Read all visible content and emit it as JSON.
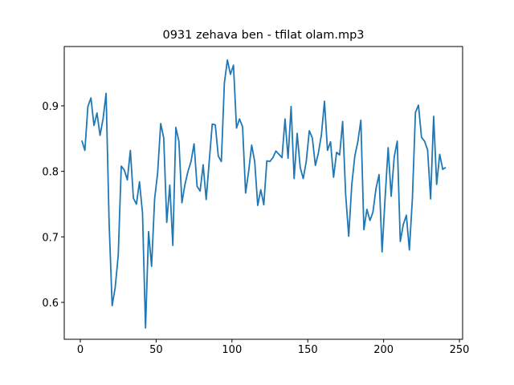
{
  "chart_data": {
    "type": "line",
    "title": "0931 zehava ben - tfilat olam.mp3",
    "x": [
      1,
      3,
      5,
      7,
      9,
      11,
      13,
      15,
      17,
      19,
      21,
      23,
      25,
      27,
      29,
      31,
      33,
      35,
      37,
      39,
      41,
      43,
      45,
      47,
      49,
      51,
      53,
      55,
      57,
      59,
      61,
      63,
      65,
      67,
      69,
      71,
      73,
      75,
      77,
      79,
      81,
      83,
      85,
      87,
      89,
      91,
      93,
      95,
      97,
      99,
      101,
      103,
      105,
      107,
      109,
      111,
      113,
      115,
      117,
      119,
      121,
      123,
      125,
      127,
      129,
      131,
      133,
      135,
      137,
      139,
      141,
      143,
      145,
      147,
      149,
      151,
      153,
      155,
      157,
      159,
      161,
      163,
      165,
      167,
      169,
      171,
      173,
      175,
      177,
      179,
      181,
      183,
      185,
      187,
      189,
      191,
      193,
      195,
      197,
      199,
      201,
      203,
      205,
      207,
      209,
      211,
      213,
      215,
      217,
      219,
      221,
      223,
      225,
      227,
      229,
      231,
      233,
      235,
      237,
      239,
      241
    ],
    "series": [
      {
        "color": "#1f77b4",
        "values": [
          0.847,
          0.832,
          0.899,
          0.912,
          0.87,
          0.889,
          0.855,
          0.88,
          0.919,
          0.72,
          0.595,
          0.623,
          0.672,
          0.808,
          0.802,
          0.787,
          0.832,
          0.759,
          0.75,
          0.784,
          0.737,
          0.561,
          0.708,
          0.655,
          0.758,
          0.798,
          0.873,
          0.851,
          0.722,
          0.779,
          0.687,
          0.867,
          0.846,
          0.752,
          0.78,
          0.8,
          0.815,
          0.842,
          0.777,
          0.77,
          0.81,
          0.757,
          0.815,
          0.872,
          0.871,
          0.823,
          0.815,
          0.935,
          0.97,
          0.948,
          0.962,
          0.866,
          0.88,
          0.868,
          0.767,
          0.8,
          0.84,
          0.815,
          0.748,
          0.772,
          0.749,
          0.816,
          0.815,
          0.821,
          0.831,
          0.826,
          0.821,
          0.88,
          0.82,
          0.899,
          0.789,
          0.858,
          0.806,
          0.789,
          0.815,
          0.862,
          0.851,
          0.809,
          0.828,
          0.856,
          0.907,
          0.832,
          0.845,
          0.791,
          0.829,
          0.825,
          0.876,
          0.764,
          0.701,
          0.779,
          0.823,
          0.845,
          0.878,
          0.711,
          0.742,
          0.725,
          0.738,
          0.774,
          0.795,
          0.677,
          0.76,
          0.836,
          0.762,
          0.822,
          0.846,
          0.693,
          0.719,
          0.733,
          0.68,
          0.759,
          0.89,
          0.901,
          0.852,
          0.846,
          0.833,
          0.758,
          0.884,
          0.78,
          0.826,
          0.803,
          0.806
        ]
      }
    ],
    "xlim": [
      -10.6,
      252.1
    ],
    "ylim": [
      0.5437,
      0.9905
    ],
    "xticks": [
      0,
      50,
      100,
      150,
      200,
      250
    ],
    "yticks": [
      0.6,
      0.7,
      0.8,
      0.9
    ],
    "grid": false
  }
}
